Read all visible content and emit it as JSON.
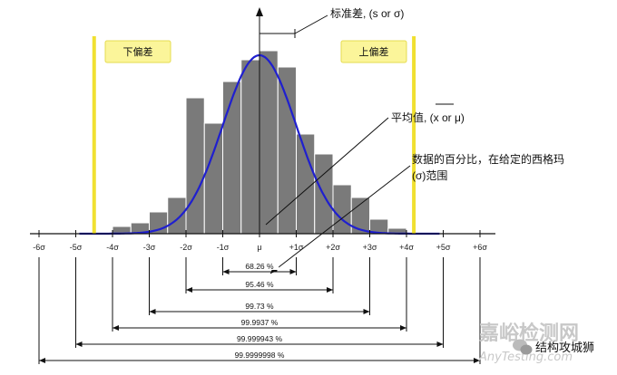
{
  "chart_data": {
    "type": "bar",
    "title": "",
    "xlabel": "",
    "ylabel": "",
    "x_tick_labels": [
      "-6σ",
      "-5σ",
      "-4σ",
      "-3σ",
      "-2σ",
      "-1σ",
      "μ",
      "+1σ",
      "+2σ",
      "+3σ",
      "+4σ",
      "+5σ",
      "+6σ"
    ],
    "x_tick_values": [
      -6,
      -5,
      -4,
      -3,
      -2,
      -1,
      0,
      1,
      2,
      3,
      4,
      5,
      6
    ],
    "bins": [
      {
        "left": -4.0,
        "right": -3.5,
        "height": 0.04
      },
      {
        "left": -3.5,
        "right": -3.0,
        "height": 0.06
      },
      {
        "left": -3.0,
        "right": -2.5,
        "height": 0.12
      },
      {
        "left": -2.5,
        "right": -2.0,
        "height": 0.2
      },
      {
        "left": -2.0,
        "right": -1.5,
        "height": 0.75
      },
      {
        "left": -1.5,
        "right": -1.0,
        "height": 0.61
      },
      {
        "left": -1.0,
        "right": -0.5,
        "height": 0.84
      },
      {
        "left": -0.5,
        "right": 0.0,
        "height": 0.96
      },
      {
        "left": 0.0,
        "right": 0.5,
        "height": 1.01
      },
      {
        "left": 0.5,
        "right": 1.0,
        "height": 0.92
      },
      {
        "left": 1.0,
        "right": 1.5,
        "height": 0.55
      },
      {
        "left": 1.5,
        "right": 2.0,
        "height": 0.44
      },
      {
        "left": 2.0,
        "right": 2.5,
        "height": 0.27
      },
      {
        "left": 2.5,
        "right": 3.0,
        "height": 0.2
      },
      {
        "left": 3.0,
        "right": 3.5,
        "height": 0.08
      },
      {
        "left": 3.5,
        "right": 4.0,
        "height": 0.03
      }
    ],
    "curve": "normal",
    "lower_limit": {
      "label": "下偏差",
      "x": -4.5
    },
    "upper_limit": {
      "label": "上偏差",
      "x": 4.2
    },
    "coverage": [
      {
        "label": "68.26 %",
        "from": -1,
        "to": 1
      },
      {
        "label": "95.46 %",
        "from": -2,
        "to": 2
      },
      {
        "label": "99.73 %",
        "from": -3,
        "to": 3
      },
      {
        "label": "99.9937 %",
        "from": -4,
        "to": 4
      },
      {
        "label": "99.999943 %",
        "from": -5,
        "to": 5
      },
      {
        "label": "99.9999998 %",
        "from": -6,
        "to": 6
      }
    ],
    "annotations": {
      "sigma": "标准差, (s or σ)",
      "mean": "平均值, (x or μ)",
      "percent_line1": "数据的百分比，在给定的西格玛",
      "percent_line2": "(σ)范围"
    },
    "colors": {
      "bar_fill": "#7a7a7a",
      "bar_stroke": "#ffffff",
      "curve": "#1f1fcf",
      "limit_line": "#f0e030",
      "limit_box": "#fbf59a"
    },
    "grid": false
  },
  "watermark": {
    "brand": "嘉峪检测网",
    "url": "AnyTesting.com",
    "account": "结构攻城狮"
  }
}
